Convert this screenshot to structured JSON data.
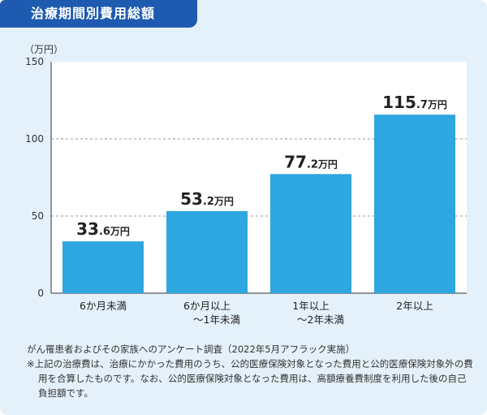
{
  "header": {
    "title": "治療期間別費用総額"
  },
  "chart_data": {
    "type": "bar",
    "unit_label": "（万円）",
    "categories": [
      [
        "6か月未満"
      ],
      [
        "6か月以上",
        "〜1年未満"
      ],
      [
        "1年以上",
        "〜2年未満"
      ],
      [
        "2年以上"
      ]
    ],
    "values": [
      33.6,
      53.2,
      77.2,
      115.7
    ],
    "value_labels": [
      {
        "int": "33",
        "dec": ".6",
        "unit": "万円"
      },
      {
        "int": "53",
        "dec": ".2",
        "unit": "万円"
      },
      {
        "int": "77",
        "dec": ".2",
        "unit": "万円"
      },
      {
        "int": "115",
        "dec": ".7",
        "unit": "万円"
      }
    ],
    "ylim": [
      0,
      150
    ],
    "yticks": [
      0,
      50,
      100,
      150
    ],
    "grid": true,
    "bar_color": "#2ea6e0"
  },
  "notes": {
    "source": "がん罹患者およびその家族へのアンケート調査（2022年5月アフラック実施）",
    "footnote": "※上記の治療費は、治療にかかった費用のうち、公的医療保険対象となった費用と公的医療保険対象外の費用を合算したものです。なお、公的医療保険対象となった費用は、高額療養費制度を利用した後の自己負担額です。"
  }
}
